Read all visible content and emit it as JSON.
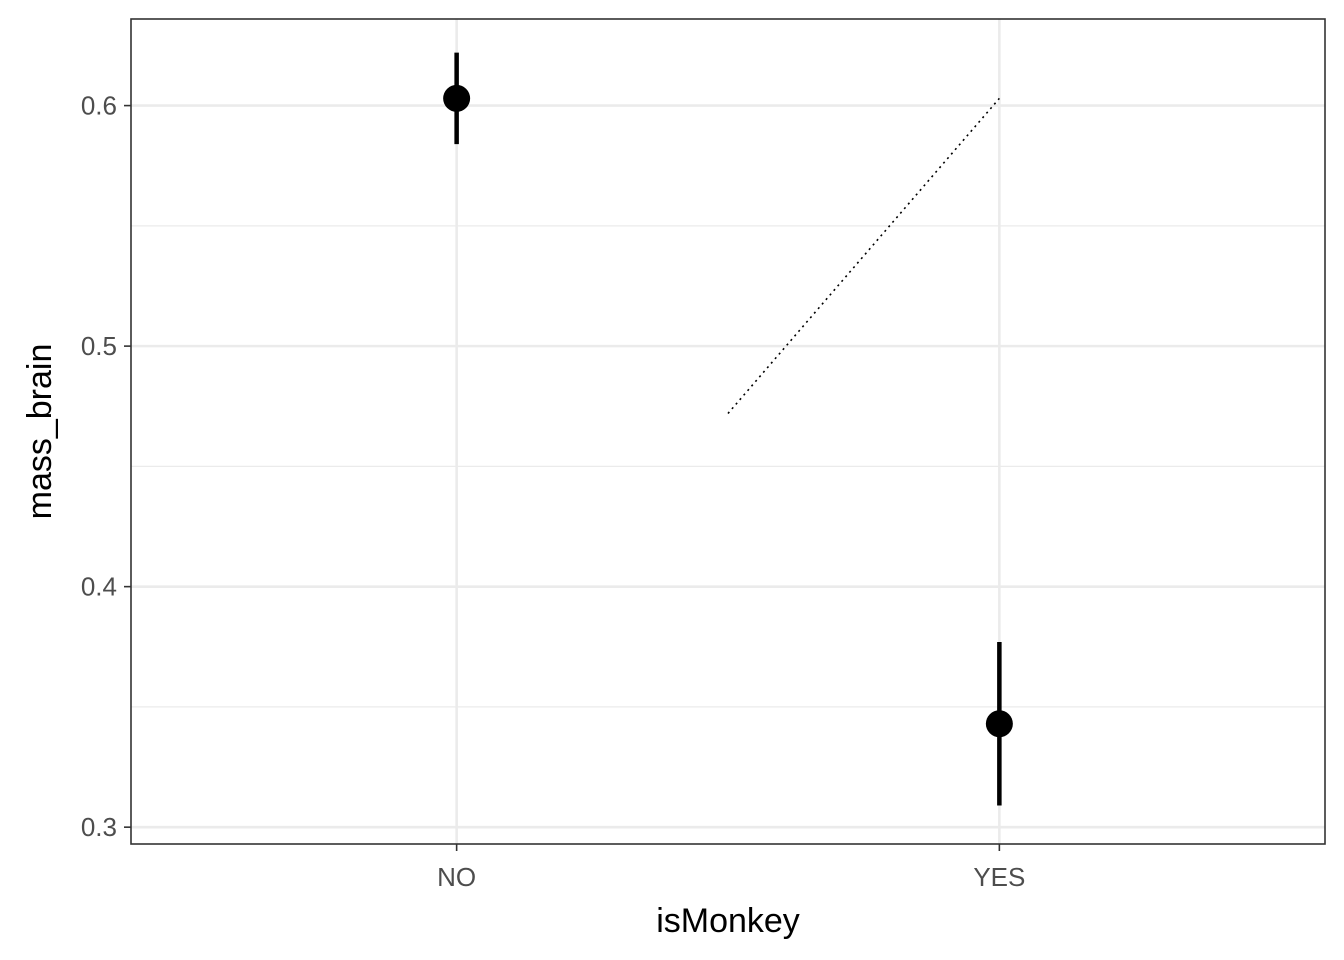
{
  "chart_data": {
    "type": "scatter",
    "x_categories": [
      "NO",
      "YES"
    ],
    "xlabel": "isMonkey",
    "ylabel": "mass_brain",
    "ylim": [
      0.293,
      0.636
    ],
    "y_ticks": [
      0.3,
      0.4,
      0.5,
      0.6
    ],
    "y_tick_labels": [
      "0.3",
      "0.4",
      "0.5",
      "0.6"
    ],
    "y_minor_ticks": [
      0.35,
      0.45,
      0.55
    ],
    "grid": true,
    "points": [
      {
        "category": "NO",
        "y": 0.603,
        "lower": 0.584,
        "upper": 0.622
      },
      {
        "category": "YES",
        "y": 0.343,
        "lower": 0.309,
        "upper": 0.377
      }
    ],
    "dotted_segment": {
      "x_from": 1.5,
      "y_from": 0.472,
      "x_to": 2,
      "y_to": 0.603
    },
    "colors": {
      "points": "#000000",
      "grid": "#ebebeb",
      "panel_border": "#333333",
      "tick_text": "#4d4d4d"
    }
  }
}
